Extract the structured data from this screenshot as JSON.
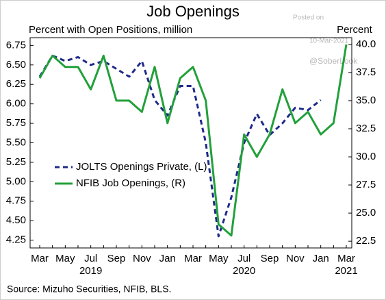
{
  "chart_data": {
    "type": "line",
    "title": "Job Openings",
    "y_label": "Percent with Open Positions, million",
    "y2_label": "Percent",
    "source": "Source:  Mizuho Securities, NFIB, BLS.",
    "watermark": [
      "Posted on",
      "10-Mar-2021",
      "@SoberLook"
    ],
    "categories": [
      "Mar",
      null,
      "May",
      null,
      "Jul",
      null,
      "Sep",
      null,
      "Nov",
      null,
      "Jan",
      null,
      "Mar",
      null,
      "May",
      null,
      "Jul",
      null,
      "Sep",
      null,
      "Nov",
      null,
      "Jan",
      null,
      "Mar"
    ],
    "year_labels": [
      "2019",
      "2020",
      "2021"
    ],
    "series": [
      {
        "name": "JOLTS Openings Private, (L)",
        "color": "#1f2a8a",
        "dash": true,
        "axis": "y",
        "values": [
          6.35,
          6.62,
          6.55,
          6.6,
          6.5,
          6.55,
          6.45,
          6.35,
          6.55,
          6.05,
          5.85,
          6.23,
          6.23,
          5.5,
          4.3,
          4.8,
          5.5,
          5.87,
          5.6,
          5.75,
          5.95,
          5.92,
          6.05,
          null,
          null
        ]
      },
      {
        "name": "NFIB Job Openings, (R)",
        "color": "#22a03a",
        "dash": false,
        "axis": "y2",
        "values": [
          37.0,
          39.0,
          38.0,
          38.0,
          36.0,
          39.0,
          35.0,
          35.0,
          34.0,
          38.0,
          33.0,
          37.0,
          38.0,
          35.0,
          24.0,
          23.0,
          32.0,
          30.0,
          32.0,
          36.0,
          33.0,
          34.0,
          32.0,
          33.0,
          40.0
        ]
      }
    ],
    "ylim": [
      4.15,
      6.85
    ],
    "yticks": [
      {
        "value": 4.25,
        "label": "4.25"
      },
      {
        "value": 4.5,
        "label": "4.50"
      },
      {
        "value": 4.75,
        "label": "4.75"
      },
      {
        "value": 5,
        "label": "5.00"
      },
      {
        "value": 5.25,
        "label": "5.25"
      },
      {
        "value": 5.5,
        "label": "5.50"
      },
      {
        "value": 5.75,
        "label": "5.75"
      },
      {
        "value": 6,
        "label": "6.00"
      },
      {
        "value": 6.25,
        "label": "6.25"
      },
      {
        "value": 6.5,
        "label": "6.50"
      },
      {
        "value": 6.75,
        "label": "6.75"
      }
    ],
    "y2lim": [
      21.9,
      40.6
    ],
    "y2ticks": [
      {
        "value": 22.5,
        "label": "22.5"
      },
      {
        "value": 25,
        "label": "25.0"
      },
      {
        "value": 27.5,
        "label": "27.5"
      },
      {
        "value": 30,
        "label": "30.0"
      },
      {
        "value": 32.5,
        "label": "32.5"
      },
      {
        "value": 35,
        "label": "35.0"
      },
      {
        "value": 37.5,
        "label": "37.5"
      },
      {
        "value": 40,
        "label": "40.0"
      }
    ],
    "legend": "lower-left"
  }
}
